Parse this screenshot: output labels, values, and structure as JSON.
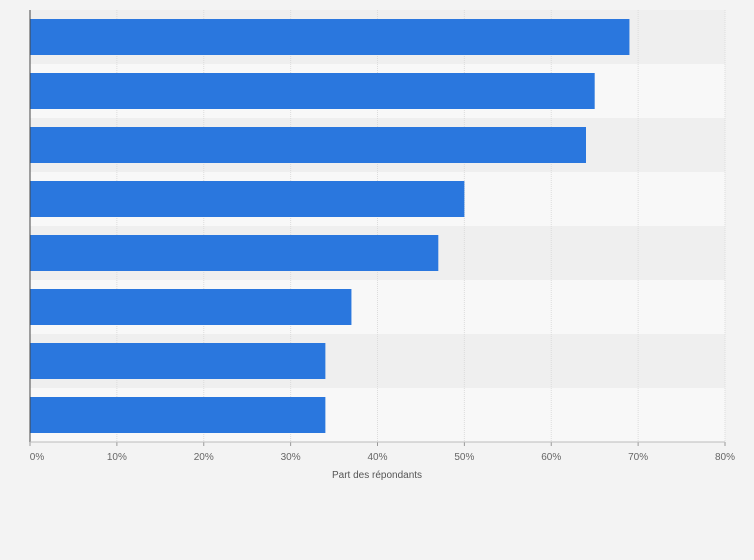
{
  "chart_data": {
    "type": "bar",
    "orientation": "horizontal",
    "categories": [
      "",
      "",
      "",
      "",
      "",
      "",
      "",
      ""
    ],
    "values": [
      69,
      65,
      64,
      50,
      47,
      37,
      34,
      34
    ],
    "title": "",
    "xlabel": "Part des répondants",
    "ylabel": "",
    "xlim": [
      0,
      80
    ],
    "x_ticks": [
      "0%",
      "10%",
      "20%",
      "30%",
      "40%",
      "50%",
      "60%",
      "70%",
      "80%"
    ],
    "grid": "vertical",
    "bar_color": "#2a77de",
    "band_colors": [
      "#efefef",
      "#f8f8f8"
    ]
  }
}
